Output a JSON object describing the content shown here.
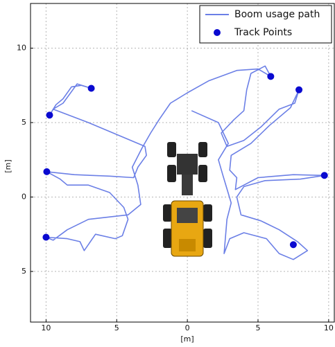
{
  "chart_data": {
    "type": "line",
    "xlabel": "[m]",
    "ylabel": "[m]",
    "xlim": [
      -11.1,
      10.4
    ],
    "ylim": [
      -8.4,
      13.0
    ],
    "xticks": [
      {
        "value": -10,
        "label": "10"
      },
      {
        "value": -5,
        "label": "5"
      },
      0,
      5,
      10
    ],
    "yticks": [
      {
        "value": -5,
        "label": "5"
      },
      0,
      5,
      10
    ],
    "grid": true,
    "legend": "upper right",
    "series": [
      {
        "name": "Boom usage path",
        "type": "line",
        "color": "#6b7fe6",
        "x": [
          -9.75,
          -9.3,
          -8.8,
          -8.2,
          -7.5,
          -6.8,
          -7.8,
          -8.8,
          -9.5,
          -7,
          -4.5,
          -3.0,
          -2.9,
          -3.5,
          -3.8,
          -5.5,
          -8,
          -9.95,
          -9,
          -8.5,
          -7,
          -5.5,
          -4.5,
          -4.2,
          -4.6,
          -5.1,
          -6.5,
          -7.3,
          -7.6,
          -8.5,
          -10,
          -9.5,
          -8.5,
          -7,
          -4.2,
          -3.3,
          -3.5,
          -3.9,
          -3.2,
          -2.6,
          -2,
          -1.2,
          0,
          1.5,
          3.5,
          5.0,
          5.9,
          5.5,
          4.5,
          4.2,
          4.0,
          3.3,
          2.4,
          2.8,
          4.0,
          5.2,
          6.5,
          7.6,
          7.9,
          7.3,
          5.8,
          4.5,
          3.1,
          3.0,
          3.5,
          3.4,
          5,
          7.5,
          9.7,
          8,
          5.5,
          4,
          3.5,
          3.8,
          5.2,
          6.5,
          7.8,
          8.5,
          7.5,
          6.5,
          5.6,
          4.0,
          3.0,
          2.6,
          2.8,
          3.1,
          2.5,
          2.2,
          2.9,
          2.2,
          0.3
        ],
        "values": [
          5.5,
          6.2,
          6.6,
          7.4,
          7.5,
          7.3,
          7.6,
          6.3,
          5.9,
          5.0,
          4.0,
          3.4,
          2.8,
          2.0,
          1.3,
          1.4,
          1.5,
          1.7,
          1.2,
          0.8,
          0.8,
          0.3,
          -0.7,
          -1.5,
          -2.6,
          -2.8,
          -2.5,
          -3.6,
          -3.0,
          -2.8,
          -2.7,
          -2.9,
          -2.2,
          -1.5,
          -1.2,
          -0.5,
          0.8,
          2.0,
          3.3,
          4.3,
          5.2,
          6.3,
          7.0,
          7.8,
          8.5,
          8.6,
          8.1,
          8.8,
          8.3,
          7.2,
          5.8,
          5.2,
          4.3,
          3.4,
          3.8,
          4.7,
          5.9,
          6.3,
          7.2,
          6.0,
          4.8,
          3.6,
          2.8,
          1.8,
          1.3,
          0.5,
          1.3,
          1.5,
          1.45,
          1.2,
          1.1,
          0.7,
          0,
          -1.2,
          -1.6,
          -2.2,
          -3.0,
          -3.6,
          -4.2,
          -3.8,
          -2.8,
          -2.4,
          -2.8,
          -3.8,
          -1.5,
          -0.4,
          1.5,
          2.5,
          3.6,
          5.0,
          5.8
        ]
      },
      {
        "name": "Track Points",
        "type": "scatter",
        "color": "#0a0ad0",
        "x": [
          -9.75,
          -6.8,
          5.9,
          7.9,
          -9.95,
          9.7,
          -10,
          7.5
        ],
        "values": [
          5.5,
          7.3,
          8.1,
          7.2,
          1.7,
          1.45,
          -2.7,
          -3.2
        ]
      }
    ]
  }
}
